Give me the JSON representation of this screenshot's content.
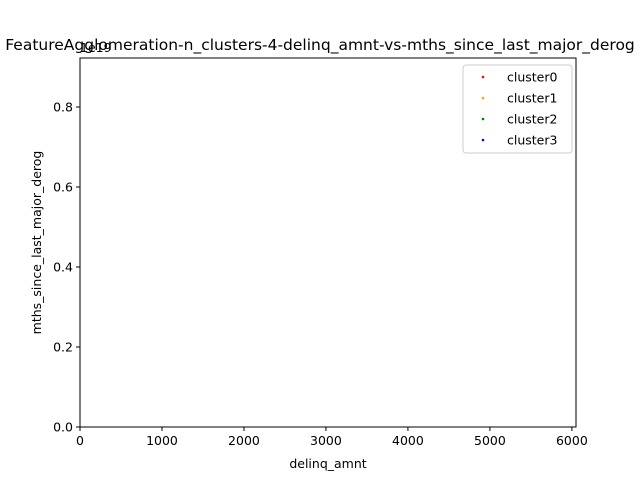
{
  "chart_data": {
    "type": "scatter",
    "title": "FeatureAgglomeration-n_clusters-4-delinq_amnt-vs-mths_since_last_major_derog",
    "xlabel": "delinq_amnt",
    "ylabel": "mths_since_last_major_derog",
    "xlim": [
      0,
      6050
    ],
    "ylim": [
      0,
      0.9225
    ],
    "x_ticks": [
      0,
      1000,
      2000,
      3000,
      4000,
      5000,
      6000
    ],
    "x_tick_labels": [
      "0",
      "1000",
      "2000",
      "3000",
      "4000",
      "5000",
      "6000"
    ],
    "y_ticks": [
      0.0,
      0.2,
      0.4,
      0.6,
      0.8
    ],
    "y_tick_labels": [
      "0.0",
      "0.2",
      "0.4",
      "0.6",
      "0.8"
    ],
    "y_offset_label": "1e19",
    "grid": false,
    "legend_position": "top-right",
    "series": [
      {
        "name": "cluster0",
        "color": "#ff0000",
        "points": []
      },
      {
        "name": "cluster1",
        "color": "#ffa500",
        "points": []
      },
      {
        "name": "cluster2",
        "color": "#008000",
        "points": []
      },
      {
        "name": "cluster3",
        "color": "#0000ff",
        "points": []
      }
    ]
  }
}
